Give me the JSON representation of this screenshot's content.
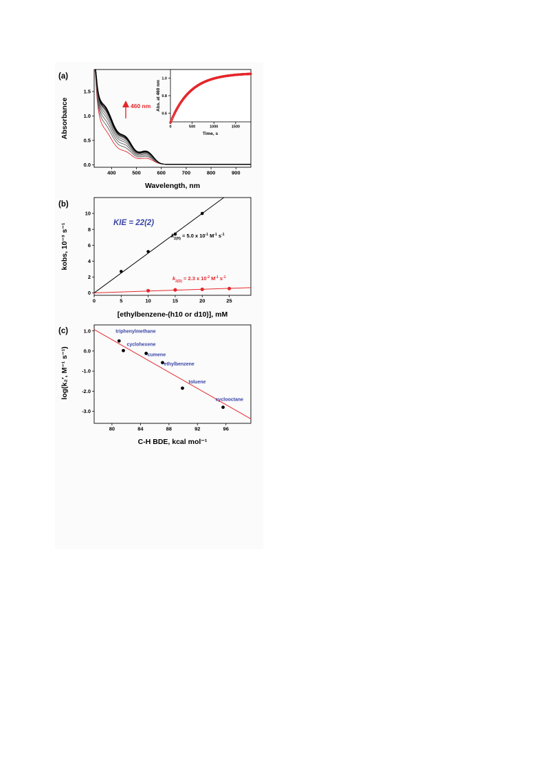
{
  "colors": {
    "black": "#000000",
    "red": "#e5262b",
    "gray": "#5a5a5a",
    "blue": "#3a45a8"
  },
  "chart_data": [
    {
      "panel": "(a)",
      "type": "line",
      "xlabel": "Wavelength, nm",
      "ylabel": "Absorbance",
      "xlim": [
        330,
        960
      ],
      "ylim": [
        -0.05,
        1.95
      ],
      "xticks": [
        400,
        500,
        600,
        700,
        800,
        900
      ],
      "yticks": [
        0.0,
        0.5,
        1.0,
        1.5
      ],
      "ytick_labels": [
        "0.0",
        "0.5",
        "1.0",
        "1.5"
      ],
      "annotation": "460 nm",
      "series": [
        {
          "color": "red",
          "final_peak": 0.48
        },
        {
          "color": "gray",
          "final_peak": 0.62
        },
        {
          "color": "gray",
          "final_peak": 0.72
        },
        {
          "color": "gray",
          "final_peak": 0.81
        },
        {
          "color": "gray",
          "final_peak": 0.88
        },
        {
          "color": "gray",
          "final_peak": 0.94
        },
        {
          "color": "black",
          "final_peak": 0.98
        },
        {
          "color": "black",
          "final_peak": 1.02
        },
        {
          "color": "black",
          "final_peak": 1.05
        }
      ],
      "inset": {
        "type": "scatter",
        "xlabel": "Time, s",
        "ylabel": "Abs. at 460 nm",
        "xlim": [
          0,
          1850
        ],
        "ylim": [
          0.5,
          1.1
        ],
        "xticks": [
          0,
          500,
          1000,
          1500
        ],
        "yticks": [
          0.6,
          0.8,
          1.0
        ],
        "ytick_labels": [
          "0.6",
          "0.8",
          "1.0"
        ],
        "model": {
          "A0": 0.49,
          "Ainf": 1.06,
          "k": 0.0022
        }
      }
    },
    {
      "panel": "(b)",
      "type": "scatter",
      "xlabel": "[ethylbenzene-(h10 or d10)], mM",
      "ylabel": "kobs, 10⁻³ s⁻¹",
      "xlim": [
        0,
        29
      ],
      "ylim": [
        -0.3,
        12
      ],
      "xticks": [
        0,
        5,
        10,
        15,
        20,
        25
      ],
      "yticks": [
        0,
        2,
        4,
        6,
        8,
        10
      ],
      "kie_label": "KIE = 22(2)",
      "series": [
        {
          "name": "ethylbenzene-h10",
          "color": "black",
          "x": [
            5,
            10,
            15,
            20
          ],
          "y": [
            2.7,
            5.2,
            7.4,
            10.0
          ],
          "fit": {
            "slope": 0.5,
            "intercept": 0.0
          }
        },
        {
          "name": "ethylbenzene-d10",
          "color": "red",
          "x": [
            10,
            15,
            20,
            25
          ],
          "y": [
            0.28,
            0.38,
            0.45,
            0.55
          ],
          "fit": {
            "slope": 0.023,
            "intercept": 0.0
          }
        }
      ],
      "fit_labels": {
        "h": {
          "k": "k",
          "sub": "2(H)",
          "text": " = 5.0 x 10",
          "exp": "-1",
          "unit": " M",
          "unit_exp": "-1",
          "s": " s",
          "s_exp": "-1"
        },
        "d": {
          "k": "k",
          "sub": "2(D)",
          "text": " = 2.3 x 10",
          "exp": "-2",
          "unit": " M",
          "unit_exp": "-1",
          "s": " s",
          "s_exp": "-1"
        }
      }
    },
    {
      "panel": "(c)",
      "type": "scatter",
      "xlabel": "C-H BDE, kcal mol⁻¹",
      "ylabel": "log(k₂′, M⁻¹ s⁻¹)",
      "xlim": [
        77.5,
        99.5
      ],
      "ylim": [
        -3.6,
        1.3
      ],
      "xticks": [
        80,
        84,
        88,
        92,
        96
      ],
      "yticks": [
        1.0,
        0.0,
        -1.0,
        -2.0,
        -3.0
      ],
      "ytick_labels": [
        "1.0",
        "0.0",
        "-1.0",
        "-2.0",
        "-3.0"
      ],
      "points": [
        {
          "name": "triphenylmethane",
          "x": 81.0,
          "y": 0.5
        },
        {
          "name": "cyclohexene",
          "x": 81.6,
          "y": 0.02
        },
        {
          "name": "cumene",
          "x": 84.8,
          "y": -0.12
        },
        {
          "name": "ethylbenzene",
          "x": 87.1,
          "y": -0.58
        },
        {
          "name": "toluene",
          "x": 89.9,
          "y": -1.85
        },
        {
          "name": "cyclooctane",
          "x": 95.6,
          "y": -2.8
        }
      ],
      "fit": {
        "x1": 77.5,
        "y1": 1.07,
        "x2": 99.5,
        "y2": -3.38
      }
    }
  ]
}
